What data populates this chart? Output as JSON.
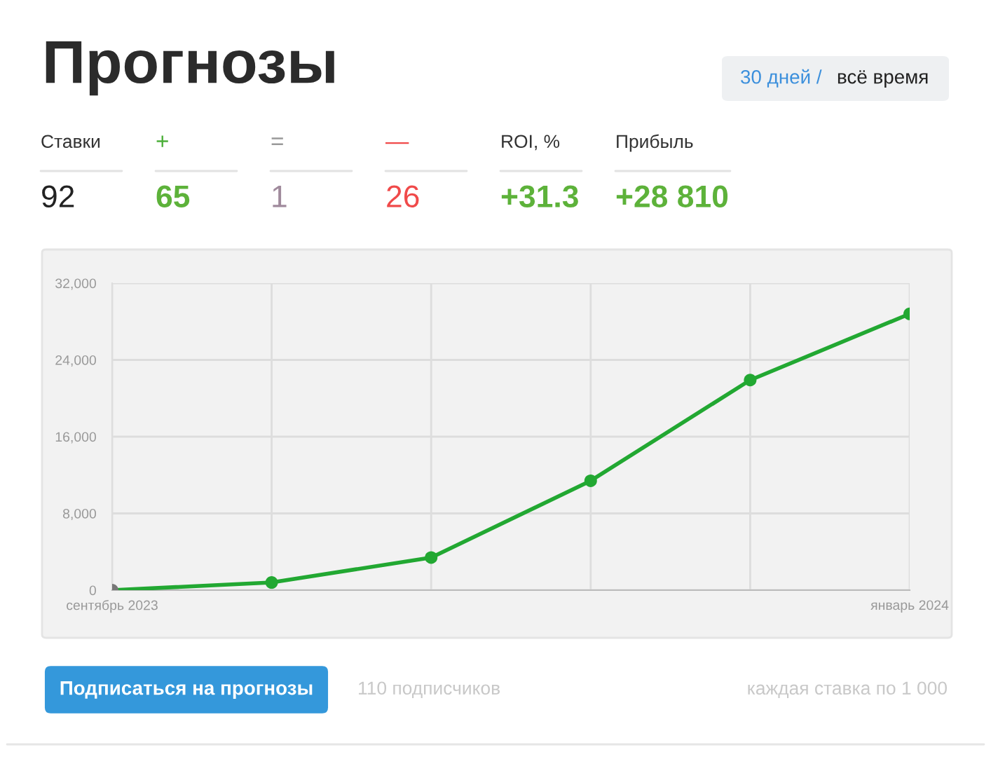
{
  "chart_data": {
    "type": "line",
    "title": "Прогнозы",
    "categories": [
      "сентябрь 2023",
      null,
      null,
      null,
      null,
      "январь 2024"
    ],
    "series": [
      {
        "color": "#22a832",
        "colors": [
          "#777777",
          "#22a832",
          "#22a832",
          "#22a832",
          "#22a832",
          "#22a832"
        ],
        "values": [
          0,
          800,
          3400,
          11400,
          21900,
          28800
        ]
      }
    ],
    "ylim": [
      0,
      32000
    ],
    "yticks": [
      0,
      {
        "value": 8000,
        "label": "8,000"
      },
      {
        "value": 16000,
        "label": "16,000"
      },
      {
        "value": 24000,
        "label": "24,000"
      },
      {
        "value": 32000,
        "label": "32,000"
      }
    ],
    "grid": true,
    "marker": "circle",
    "line_style": "solid",
    "annotations": [
      "30 дней /",
      "всё время",
      "Ставки",
      "+",
      "=",
      "—",
      "ROI, %",
      "Прибыль",
      "92",
      "65",
      "1",
      "26",
      "+31.3",
      "+28 810",
      "Подписаться на прогнозы",
      "110 подписчиков",
      "каждая ставка по 1 000"
    ]
  }
}
